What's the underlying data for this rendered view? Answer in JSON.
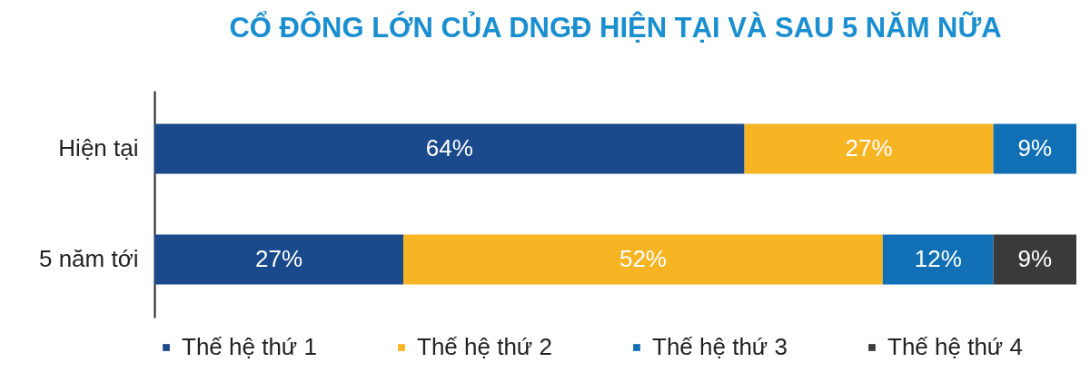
{
  "chart_data": {
    "type": "bar",
    "orientation": "horizontal",
    "stacked": true,
    "title": "CỔ ĐÔNG LỚN CỦA DNGĐ HIỆN TẠI VÀ SAU 5 NĂM NỮA",
    "categories": [
      "Hiện  tại",
      "5 năm tới"
    ],
    "series": [
      {
        "name": "Thế hệ thứ 1",
        "color": "#1a4a8c",
        "values": [
          64,
          27
        ],
        "value_labels": [
          "64%",
          "27%"
        ]
      },
      {
        "name": "Thế hệ thứ 2",
        "color": "#f7b524",
        "values": [
          27,
          52
        ],
        "value_labels": [
          "27%",
          "52%"
        ]
      },
      {
        "name": "Thế hệ thứ 3",
        "color": "#1170b5",
        "values": [
          9,
          12
        ],
        "value_labels": [
          "9%",
          "12%"
        ]
      },
      {
        "name": "Thế hệ thứ 4",
        "color": "#3a3a3a",
        "values": [
          null,
          9
        ],
        "value_labels": [
          null,
          "9%"
        ]
      }
    ],
    "tick_labels": "y",
    "legend": "bottom",
    "grid": false
  }
}
